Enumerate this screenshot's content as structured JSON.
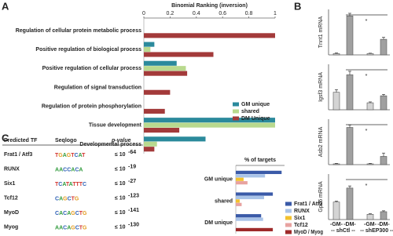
{
  "panel_labels": [
    "A",
    "B",
    "C"
  ],
  "chart_data": [
    {
      "type": "barh",
      "title": "Binomial Ranking (inversion)",
      "categories": [
        "Regulation of cellular protein metabolic process",
        "Positive regulation of biological process",
        "Positive regulation of cellular process",
        "Regulation of signal transduction",
        "Regulation of protein phosphorylation",
        "Tissue development",
        "Developmental process"
      ],
      "series": [
        {
          "name": "GM unique",
          "color": "#2b8a9c",
          "values": [
            null,
            0.08,
            0.25,
            null,
            null,
            1,
            0.47
          ]
        },
        {
          "name": "shared",
          "color": "#b9d98e",
          "values": [
            null,
            0.05,
            0.32,
            null,
            null,
            1,
            0.1
          ]
        },
        {
          "name": "DM Unique",
          "color": "#a33a3a",
          "values": [
            1,
            0.53,
            0.33,
            0.2,
            0.16,
            0.27,
            0.08
          ]
        }
      ],
      "xlim": [
        0,
        1
      ],
      "xticks": [
        0,
        0.2,
        0.4,
        0.6,
        0.8,
        1
      ],
      "legend": "right"
    },
    {
      "type": "bar",
      "ylabel": "Tnnt1 mRNA",
      "categories": [
        null,
        null,
        null,
        null
      ],
      "values": [
        1,
        30,
        1,
        12
      ],
      "errors": [
        0.5,
        2,
        0.3,
        1.5
      ],
      "colors": [
        "#d4d4d4",
        "#a0a0a0",
        "#d4d4d4",
        "#a0a0a0"
      ],
      "ylim": [
        0,
        35
      ],
      "annotation": "*"
    },
    {
      "type": "bar",
      "ylabel": "Igsf3 mRNA",
      "categories": [
        null,
        null,
        null,
        null
      ],
      "values": [
        1,
        2,
        0.4,
        0.8
      ],
      "errors": [
        0.15,
        0.2,
        0.05,
        0.08
      ],
      "colors": [
        "#d4d4d4",
        "#a0a0a0",
        "#d4d4d4",
        "#a0a0a0"
      ],
      "ylim": [
        0,
        2.6
      ],
      "annotation": "*"
    },
    {
      "type": "bar",
      "ylabel": "Asb2 mRNA",
      "categories": [
        null,
        null,
        null,
        null
      ],
      "values": [
        1,
        45,
        1,
        10
      ],
      "errors": [
        0.5,
        3,
        0.5,
        4
      ],
      "colors": [
        "#d4d4d4",
        "#a0a0a0",
        "#d4d4d4",
        "#a0a0a0"
      ],
      "ylim": [
        0,
        55
      ],
      "annotation": "*"
    },
    {
      "type": "bar",
      "ylabel": "Gpc6 mRNA",
      "categories": [
        "-GM-",
        "-DM-",
        "-GM-",
        "-DM-"
      ],
      "groups": [
        "-- shCtl --",
        "-- shEP300 --"
      ],
      "values": [
        1,
        1.8,
        0.3,
        0.45
      ],
      "errors": [
        0.05,
        0.12,
        0.03,
        0.05
      ],
      "colors": [
        "#d4d4d4",
        "#a0a0a0",
        "#d4d4d4",
        "#a0a0a0"
      ],
      "ylim": [
        0,
        2.6
      ],
      "annotation": "*"
    },
    {
      "type": "barh",
      "title": "% of targets",
      "categories": [
        "GM unique",
        "shared",
        "DM unique"
      ],
      "series": [
        {
          "name": "Frat1 / Atf3",
          "color": "#3a5aa8",
          "values": [
            47,
            38,
            26
          ]
        },
        {
          "name": "RUNX",
          "color": "#a9c3e8",
          "values": [
            30,
            29,
            28
          ]
        },
        {
          "name": "Six1",
          "color": "#f2c12e",
          "values": [
            8,
            4,
            null
          ]
        },
        {
          "name": "Tcf12",
          "color": "#e8a3a0",
          "values": [
            12,
            6,
            null
          ]
        },
        {
          "name": "MyoD / Myog",
          "color": "#9e2a2a",
          "values": [
            null,
            null,
            38
          ]
        }
      ],
      "xlim": [
        0,
        50
      ],
      "legend": "lower right"
    }
  ],
  "table": {
    "header": [
      "Predicted  TF",
      "Seqlogo",
      "p-value"
    ],
    "rows": [
      {
        "tf": "Frat1 / Atf3",
        "seqlogo": "TGAGTCAT",
        "p_base": "≤ 10",
        "p_exp": "-64"
      },
      {
        "tf": "RUNX",
        "seqlogo": "AACCACA",
        "p_base": "≤ 10",
        "p_exp": "-19"
      },
      {
        "tf": "Six1",
        "seqlogo": "TCATATTTC",
        "p_base": "≤ 10",
        "p_exp": "-27"
      },
      {
        "tf": "Tcf12",
        "seqlogo": "CAGCTG",
        "p_base": "≤ 10",
        "p_exp": "-123"
      },
      {
        "tf": "MyoD",
        "seqlogo": "CACAGCTG",
        "p_base": "≤ 10",
        "p_exp": "-141"
      },
      {
        "tf": "Myog",
        "seqlogo": "AACAGCTG",
        "p_base": "≤ 10",
        "p_exp": "-130"
      }
    ]
  }
}
